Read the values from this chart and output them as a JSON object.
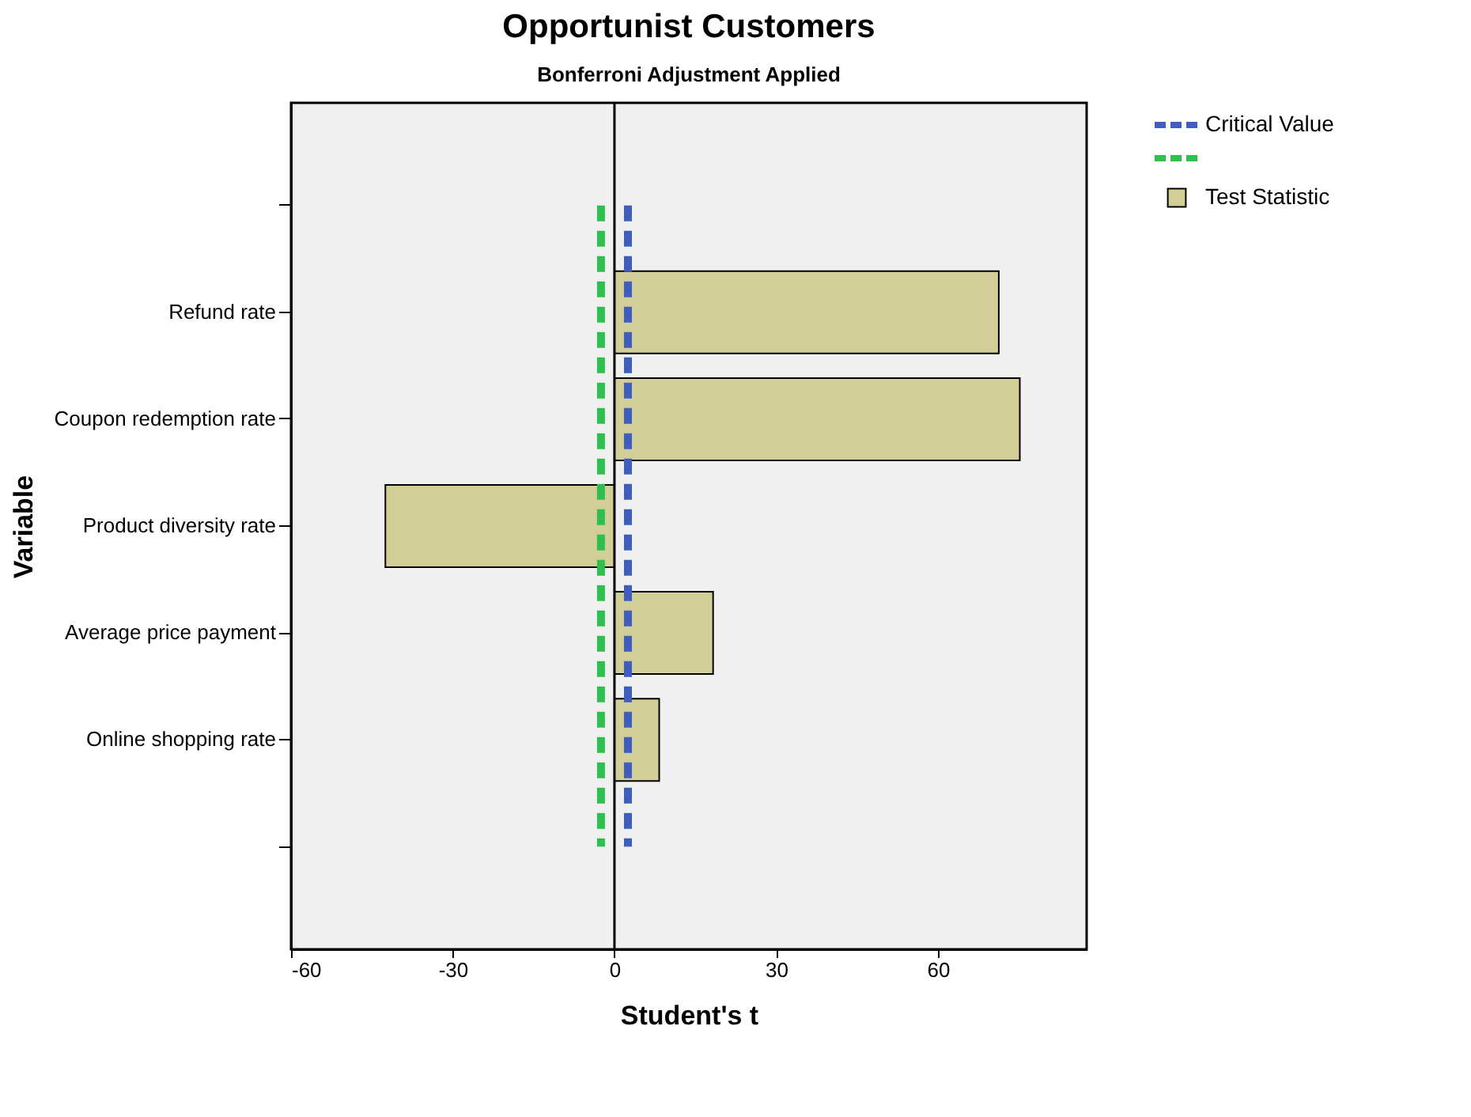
{
  "chart_data": {
    "type": "bar",
    "orientation": "horizontal",
    "title": "Opportunist Customers",
    "subtitle": "Bonferroni Adjustment Applied",
    "xlabel": "Student's t",
    "ylabel": "Variable",
    "categories": [
      null,
      "Refund rate",
      "Coupon redemption rate",
      "Product diversity rate",
      "Average price payment",
      "Online shopping rate",
      null
    ],
    "series": [
      {
        "name": "Test Statistic",
        "color": "#d3ce98",
        "values": [
          null,
          71.3,
          75.2,
          -42.5,
          18.3,
          8.3,
          null
        ]
      }
    ],
    "xlim": [
      -60,
      87.6
    ],
    "xticks": [
      -60,
      -30,
      0,
      30,
      60
    ],
    "grid": false,
    "legend": "top right",
    "ref_lines": [
      {
        "axis": "x",
        "value": 2.5,
        "label": "Critical Value",
        "color": "#3f5cbf",
        "line_style": "dashed"
      },
      {
        "axis": "x",
        "value": -2.5,
        "label": null,
        "color": "#2fbf4f",
        "line_style": "dashed"
      },
      {
        "axis": "x",
        "value": 0,
        "label": null,
        "color": "#000000",
        "line_style": "solid"
      }
    ]
  }
}
